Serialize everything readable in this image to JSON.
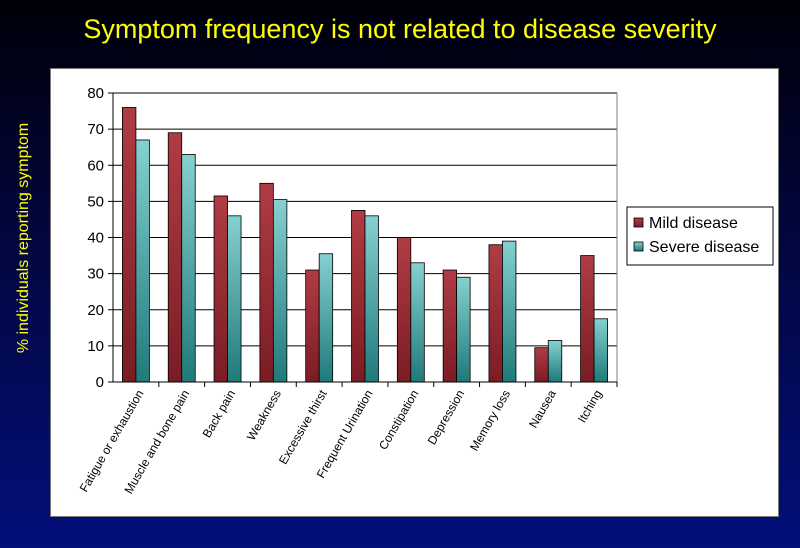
{
  "title": "Symptom frequency is not related to disease severity",
  "chart_data": {
    "type": "bar",
    "title": "Symptom frequency is not related to disease severity",
    "xlabel": "",
    "ylabel": "% individuals reporting symptom",
    "ylim": [
      0,
      80
    ],
    "yticks": [
      0,
      10,
      20,
      30,
      40,
      50,
      60,
      70,
      80
    ],
    "grid": true,
    "legend_position": "right",
    "categories": [
      "Fatigue or exhaustion",
      "Muscle and bone pain",
      "Back pain",
      "Weakness",
      "Excessive thirst",
      "Frequent Urination",
      "Constipation",
      "Depression",
      "Memory loss",
      "Nausea",
      "Itching"
    ],
    "series": [
      {
        "name": "Mild disease",
        "color": "#993333",
        "values": [
          76,
          69,
          51.5,
          55,
          31,
          47.5,
          40,
          31,
          38,
          9.5,
          35
        ]
      },
      {
        "name": "Severe disease",
        "color": "#339999",
        "values": [
          67,
          63,
          46,
          50.5,
          35.5,
          46,
          33,
          29,
          39,
          11.5,
          17.5
        ]
      }
    ]
  },
  "colors": {
    "title_text": "#ffff00",
    "mild_disease": "#993333",
    "severe_disease": "#339999"
  }
}
